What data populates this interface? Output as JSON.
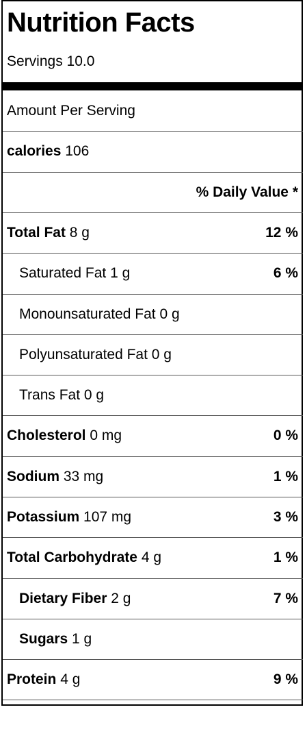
{
  "header": {
    "title": "Nutrition Facts",
    "servings": "Servings 10.0"
  },
  "amount_per_serving": "Amount Per Serving",
  "calories": {
    "name": "calories",
    "value": "106"
  },
  "daily_value_header": "% Daily Value *",
  "nutrients": [
    {
      "name": "Total Fat",
      "amount": "8 g",
      "dv": "12 %"
    },
    {
      "name": "Saturated Fat",
      "amount": "1 g",
      "dv": "6 %"
    },
    {
      "name": "Monounsaturated Fat",
      "amount": "0 g",
      "dv": ""
    },
    {
      "name": "Polyunsaturated Fat",
      "amount": "0 g",
      "dv": ""
    },
    {
      "name": "Trans Fat",
      "amount": "0 g",
      "dv": ""
    },
    {
      "name": "Cholesterol",
      "amount": "0 mg",
      "dv": "0 %"
    },
    {
      "name": "Sodium",
      "amount": "33 mg",
      "dv": "1 %"
    },
    {
      "name": "Potassium",
      "amount": "107 mg",
      "dv": "3 %"
    },
    {
      "name": "Total Carbohydrate",
      "amount": "4 g",
      "dv": "1 %"
    },
    {
      "name": "Dietary Fiber",
      "amount": "2 g",
      "dv": "7 %"
    },
    {
      "name": "Sugars",
      "amount": "1 g",
      "dv": ""
    },
    {
      "name": "Protein",
      "amount": "4 g",
      "dv": "9 %"
    }
  ]
}
